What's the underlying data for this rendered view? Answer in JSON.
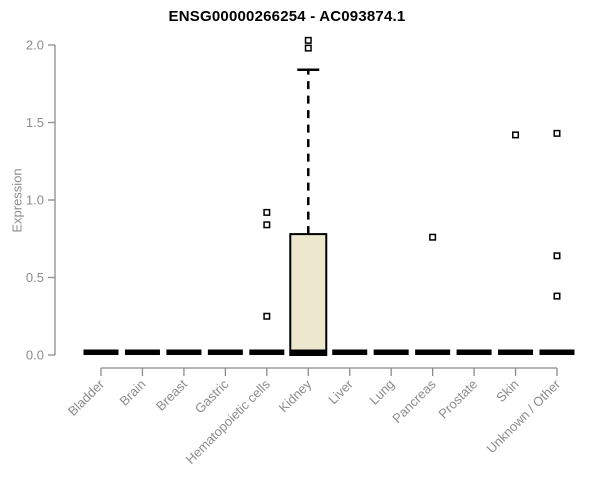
{
  "figure": {
    "title": "ENSG00000266254 - AC093874.1"
  },
  "chart_data": {
    "type": "boxplot",
    "title": "ENSG00000266254 - AC093874.1",
    "xlabel": "",
    "ylabel": "Expression",
    "ylim": [
      0,
      2.05
    ],
    "yticks": [
      0.0,
      0.5,
      1.0,
      1.5,
      2.0
    ],
    "grid": false,
    "legend": "none",
    "categories": [
      "Bladder",
      "Brain",
      "Breast",
      "Gastric",
      "Hematopoietic cells",
      "Kidney",
      "Liver",
      "Lung",
      "Pancreas",
      "Prostate",
      "Skin",
      "Unknown / Other"
    ],
    "series": [
      {
        "category": "Bladder",
        "q1": 0,
        "median": 0,
        "q3": 0,
        "whisker_low": 0,
        "whisker_high": 0,
        "outliers": []
      },
      {
        "category": "Brain",
        "q1": 0,
        "median": 0,
        "q3": 0,
        "whisker_low": 0,
        "whisker_high": 0,
        "outliers": []
      },
      {
        "category": "Breast",
        "q1": 0,
        "median": 0,
        "q3": 0,
        "whisker_low": 0,
        "whisker_high": 0,
        "outliers": []
      },
      {
        "category": "Gastric",
        "q1": 0,
        "median": 0,
        "q3": 0,
        "whisker_low": 0,
        "whisker_high": 0,
        "outliers": []
      },
      {
        "category": "Hematopoietic cells",
        "q1": 0,
        "median": 0,
        "q3": 0,
        "whisker_low": 0,
        "whisker_high": 0,
        "outliers": [
          0.25,
          0.84,
          0.92
        ]
      },
      {
        "category": "Kidney",
        "q1": 0,
        "median": 0,
        "q3": 0.78,
        "whisker_low": 0,
        "whisker_high": 1.84,
        "outliers": [
          1.98,
          2.03
        ]
      },
      {
        "category": "Liver",
        "q1": 0,
        "median": 0,
        "q3": 0,
        "whisker_low": 0,
        "whisker_high": 0,
        "outliers": []
      },
      {
        "category": "Lung",
        "q1": 0,
        "median": 0,
        "q3": 0,
        "whisker_low": 0,
        "whisker_high": 0,
        "outliers": []
      },
      {
        "category": "Pancreas",
        "q1": 0,
        "median": 0,
        "q3": 0,
        "whisker_low": 0,
        "whisker_high": 0,
        "outliers": [
          0.76
        ]
      },
      {
        "category": "Prostate",
        "q1": 0,
        "median": 0,
        "q3": 0,
        "whisker_low": 0,
        "whisker_high": 0,
        "outliers": []
      },
      {
        "category": "Skin",
        "q1": 0,
        "median": 0,
        "q3": 0,
        "whisker_low": 0,
        "whisker_high": 0,
        "outliers": [
          1.42
        ]
      },
      {
        "category": "Unknown / Other",
        "q1": 0,
        "median": 0,
        "q3": 0,
        "whisker_low": 0,
        "whisker_high": 0,
        "outliers": [
          0.38,
          0.64,
          1.43
        ]
      }
    ],
    "colors": {
      "box_fill": "#ece7cd",
      "box_border": "#000000",
      "median": "#000000",
      "whisker": "#000000",
      "outlier_fill": "#ffffff",
      "outlier_border": "#000000",
      "axis": "#8c8c8c",
      "tick_text": "#8c8c8c",
      "title_text": "#000000"
    }
  }
}
